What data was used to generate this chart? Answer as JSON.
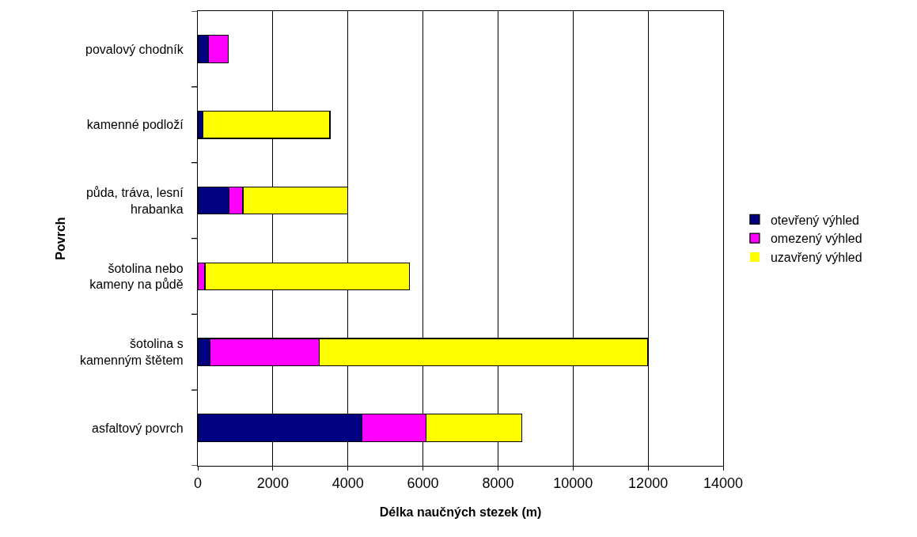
{
  "chart_data": {
    "type": "bar",
    "orientation": "horizontal",
    "stacked": true,
    "xlabel": "Délka naučných stezek (m)",
    "ylabel": "Povrch",
    "categories": [
      "povalový chodník",
      "kamenné podloží",
      "půda, tráva, lesní\nhrabanka",
      "šotolina nebo\nkameny na půdě",
      "šotolina s\nkamenným štětem",
      "asfaltový povrch"
    ],
    "series": [
      {
        "name": "otevřený výhled",
        "color": "#000080",
        "values": [
          290,
          140,
          840,
          0,
          320,
          4370
        ]
      },
      {
        "name": "omezený výhled",
        "color": "#ff00ff",
        "values": [
          520,
          0,
          360,
          190,
          2920,
          1710
        ]
      },
      {
        "name": "uzavřený výhled",
        "color": "#ffff00",
        "values": [
          0,
          3380,
          2800,
          5450,
          8760,
          2550
        ]
      }
    ],
    "xlim": [
      0,
      14000
    ],
    "xticks": [
      0,
      2000,
      4000,
      6000,
      8000,
      10000,
      12000,
      14000
    ],
    "grid": "x",
    "legend": "right"
  }
}
